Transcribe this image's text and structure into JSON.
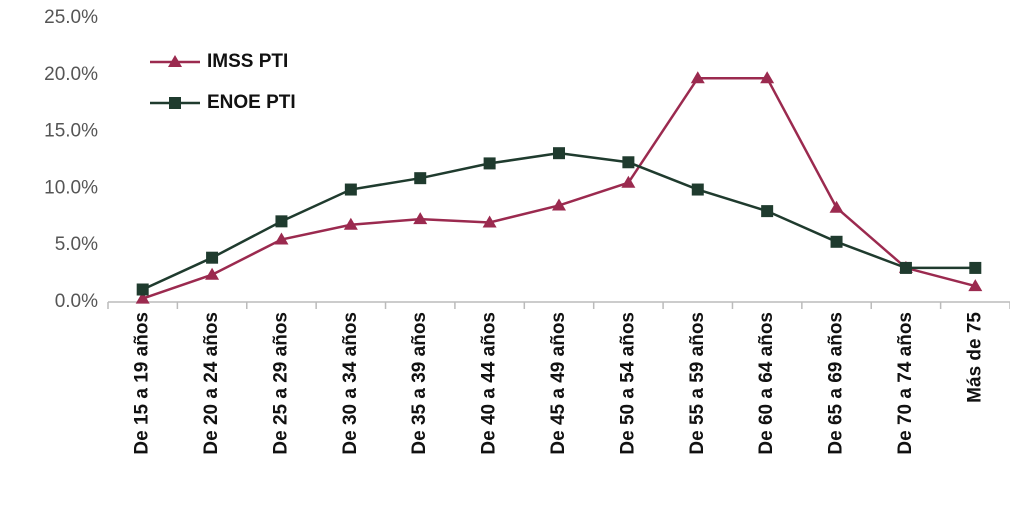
{
  "chart_data": {
    "type": "line",
    "categories": [
      "De 15 a 19 años",
      "De 20 a 24 años",
      "De 25 a 29 años",
      "De 30 a 34 años",
      "De 35 a 39 años",
      "De 40 a 44 años",
      "De 45 a 49 años",
      "De 50 a 54 años",
      "De 55 a 59 años",
      "De 60 a 64 años",
      "De 65 a 69 años",
      "De 70 a 74 años",
      "Más de 75"
    ],
    "series": [
      {
        "name": "IMSS PTI",
        "color": "#9b2a4f",
        "marker": "triangle",
        "values": [
          0.3,
          2.4,
          5.5,
          6.8,
          7.3,
          7.0,
          8.5,
          10.5,
          19.7,
          19.7,
          8.3,
          3.0,
          1.4
        ]
      },
      {
        "name": "ENOE PTI",
        "color": "#1f3b2e",
        "marker": "square",
        "values": [
          1.1,
          3.9,
          7.1,
          9.9,
          10.9,
          12.2,
          13.1,
          12.3,
          9.9,
          8.0,
          5.3,
          3.0,
          3.0
        ]
      }
    ],
    "ylim": [
      0,
      25
    ],
    "yticks": [
      {
        "value": 0,
        "label": "0.0%"
      },
      {
        "value": 5,
        "label": "5.0%"
      },
      {
        "value": 10,
        "label": "10.0%"
      },
      {
        "value": 15,
        "label": "15.0%"
      },
      {
        "value": 20,
        "label": "20.0%"
      },
      {
        "value": 25,
        "label": "25.0%"
      }
    ],
    "grid": false,
    "legend": "upper left"
  }
}
